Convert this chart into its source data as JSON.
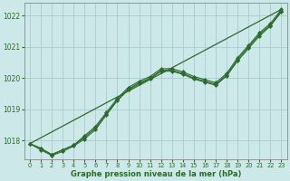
{
  "background_color": "#cce8e8",
  "grid_color": "#aacccc",
  "line_color": "#2d6a2d",
  "xlabel": "Graphe pression niveau de la mer (hPa)",
  "ylim": [
    1017.4,
    1022.4
  ],
  "xlim": [
    -0.5,
    23.5
  ],
  "yticks": [
    1018,
    1019,
    1020,
    1021,
    1022
  ],
  "xticks": [
    0,
    1,
    2,
    3,
    4,
    5,
    6,
    7,
    8,
    9,
    10,
    11,
    12,
    13,
    14,
    15,
    16,
    17,
    18,
    19,
    20,
    21,
    22,
    23
  ],
  "series": [
    {
      "y": [
        1017.9,
        null,
        null,
        null,
        null,
        null,
        null,
        null,
        null,
        null,
        null,
        null,
        null,
        null,
        null,
        null,
        null,
        null,
        null,
        null,
        null,
        null,
        null,
        1022.2
      ],
      "marker": false,
      "linewidth": 0.9
    },
    {
      "y": [
        1017.9,
        1017.75,
        1017.55,
        1017.7,
        1017.85,
        1018.15,
        1018.45,
        1018.9,
        1019.35,
        1019.7,
        1019.9,
        1020.05,
        1020.3,
        1020.3,
        1020.2,
        1020.05,
        1019.95,
        1019.85,
        1020.15,
        1020.65,
        1021.05,
        1021.45,
        1021.75,
        1022.2
      ],
      "marker": true,
      "linewidth": 0.8
    },
    {
      "y": [
        1017.9,
        1017.75,
        1017.55,
        1017.7,
        1017.85,
        1018.1,
        1018.4,
        1018.85,
        1019.3,
        1019.65,
        1019.85,
        1020.0,
        1020.25,
        1020.25,
        1020.15,
        1020.0,
        1019.9,
        1019.8,
        1020.1,
        1020.6,
        1021.0,
        1021.4,
        1021.7,
        1022.15
      ],
      "marker": true,
      "linewidth": 0.8
    },
    {
      "y": [
        1017.9,
        1017.7,
        1017.52,
        1017.65,
        1017.82,
        1018.05,
        1018.35,
        1018.82,
        1019.28,
        1019.62,
        1019.82,
        1019.97,
        1020.22,
        1020.22,
        1020.12,
        1019.97,
        1019.87,
        1019.77,
        1020.07,
        1020.55,
        1020.95,
        1021.35,
        1021.67,
        1022.12
      ],
      "marker": true,
      "linewidth": 0.8
    }
  ]
}
